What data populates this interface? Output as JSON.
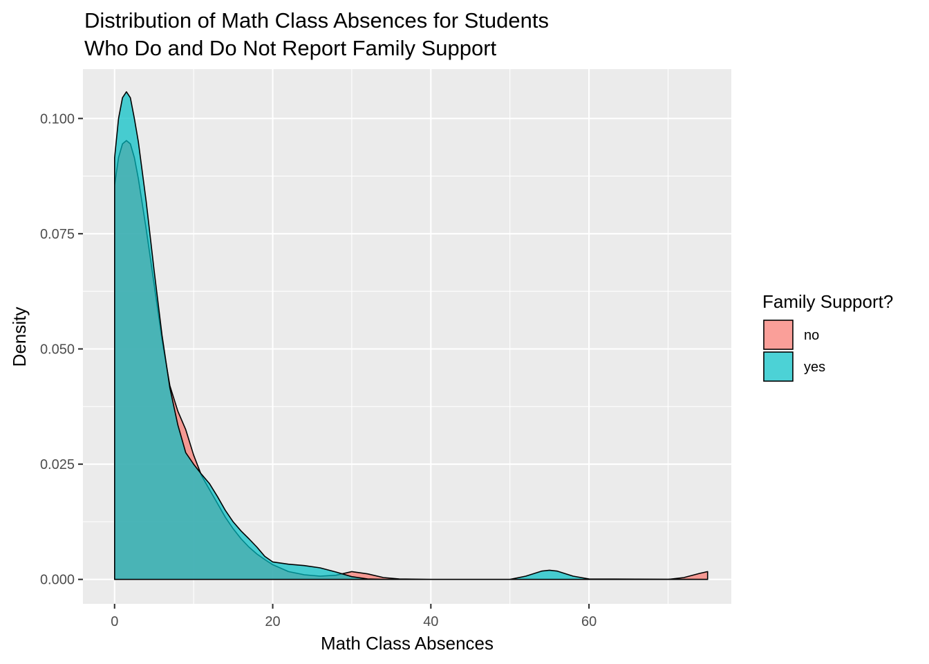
{
  "chart_data": {
    "type": "area",
    "subtype": "density",
    "title_lines": [
      "Distribution of Math Class Absences for Students",
      "Who Do and Do Not Report Family Support"
    ],
    "xlabel": "Math Class Absences",
    "ylabel": "Density",
    "xlim": [
      -4,
      78
    ],
    "ylim": [
      -0.0053,
      0.1107
    ],
    "x_ticks": [
      0,
      20,
      40,
      60
    ],
    "x_tick_labels": [
      "0",
      "20",
      "40",
      "60"
    ],
    "y_ticks": [
      0,
      0.025,
      0.05,
      0.075,
      0.1
    ],
    "y_tick_labels": [
      "0.000",
      "0.025",
      "0.050",
      "0.075",
      "0.100"
    ],
    "grid": true,
    "background": "#ebebeb",
    "fill_opacity": 0.7,
    "legend": {
      "title": "Family Support?",
      "position": "right",
      "entries": [
        {
          "label": "no",
          "color": "#f8766d"
        },
        {
          "label": "yes",
          "color": "#00bfc4"
        }
      ]
    },
    "series": [
      {
        "name": "no",
        "color": "#f8766d",
        "x": [
          0,
          0.5,
          1,
          1.5,
          2,
          2.5,
          3,
          4,
          5,
          6,
          7,
          8,
          9,
          10,
          11,
          12,
          13,
          14,
          15,
          16,
          17,
          18,
          19,
          20,
          22,
          24,
          26,
          28,
          30,
          32,
          34,
          36,
          40,
          50,
          60,
          70,
          72,
          74,
          75
        ],
        "y": [
          0.0855,
          0.0915,
          0.0945,
          0.0952,
          0.0945,
          0.0915,
          0.087,
          0.076,
          0.064,
          0.052,
          0.042,
          0.0365,
          0.0325,
          0.027,
          0.0225,
          0.0195,
          0.0165,
          0.0135,
          0.011,
          0.0088,
          0.007,
          0.0055,
          0.0043,
          0.0032,
          0.0017,
          0.001,
          0.0007,
          0.0009,
          0.0017,
          0.0012,
          0.0004,
          0.0001,
          0,
          0,
          0,
          0,
          0.0004,
          0.0013,
          0.0017
        ]
      },
      {
        "name": "yes",
        "color": "#00bfc4",
        "x": [
          0,
          0.5,
          1,
          1.5,
          2,
          2.5,
          3,
          4,
          5,
          6,
          7,
          8,
          9,
          10,
          11,
          12,
          13,
          14,
          15,
          16,
          17,
          18,
          19,
          20,
          22,
          24,
          26,
          28,
          30,
          32,
          34,
          36,
          40,
          50,
          52,
          54,
          55,
          56,
          58,
          60,
          75
        ],
        "y": [
          0.0915,
          0.1,
          0.1045,
          0.1058,
          0.1045,
          0.1,
          0.095,
          0.082,
          0.067,
          0.053,
          0.0415,
          0.0335,
          0.0275,
          0.025,
          0.0228,
          0.0208,
          0.018,
          0.015,
          0.0125,
          0.0105,
          0.0088,
          0.007,
          0.005,
          0.0038,
          0.0033,
          0.003,
          0.0025,
          0.0016,
          0.0006,
          0.0001,
          0,
          0,
          0,
          0,
          0.0007,
          0.0018,
          0.002,
          0.0018,
          0.0007,
          0.0001,
          0
        ]
      }
    ]
  }
}
